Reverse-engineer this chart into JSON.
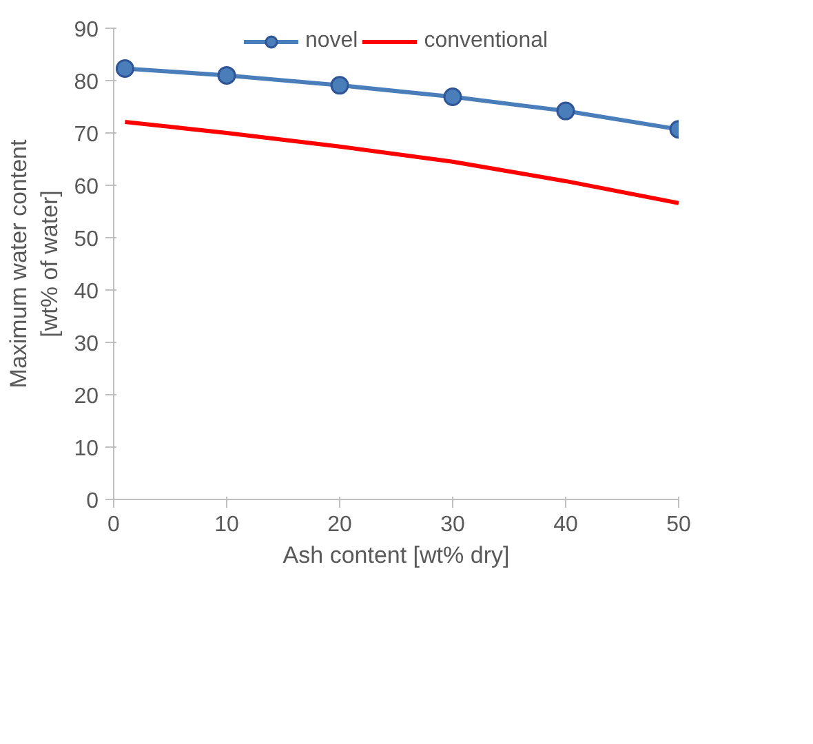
{
  "chart_data": {
    "type": "line",
    "xlabel": "Ash content [wt% dry]",
    "ylabel": "Maximum water content\n[wt% of water]",
    "xlim": [
      0,
      50
    ],
    "xticks": [
      0,
      10,
      20,
      30,
      40,
      50
    ],
    "ylim": [
      0,
      90
    ],
    "yticks": [
      0,
      10,
      20,
      30,
      40,
      50,
      60,
      70,
      80,
      90
    ],
    "grid": false,
    "legend": "top",
    "series": [
      {
        "name": "novel",
        "color": "#4a7ebb",
        "marker": "circle",
        "x": [
          1,
          10,
          20,
          30,
          40,
          50
        ],
        "values": [
          82.3,
          81.0,
          79.1,
          76.9,
          74.2,
          70.7
        ]
      },
      {
        "name": "conventional",
        "color": "#ff0000",
        "marker": "none",
        "x": [
          1,
          10,
          20,
          30,
          40,
          50
        ],
        "values": [
          72.1,
          70.0,
          67.4,
          64.5,
          60.8,
          56.6
        ]
      }
    ]
  }
}
